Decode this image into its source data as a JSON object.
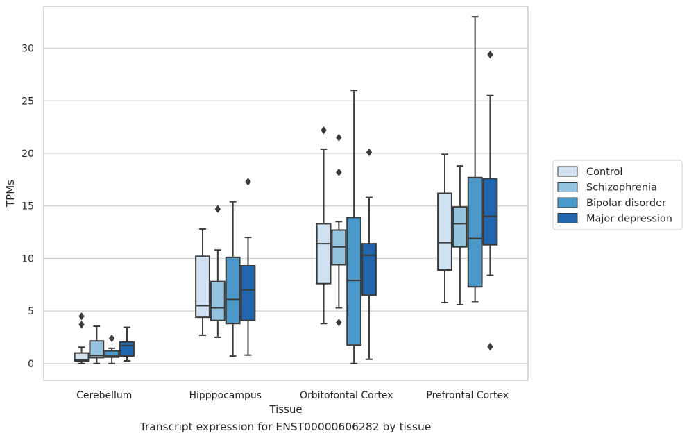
{
  "caption": "Transcript expression for ENST00000606282 by tissue",
  "chart_data": {
    "type": "box",
    "title": "",
    "xlabel": "Tissue",
    "ylabel": "TPMs",
    "ylim": [
      -1.6,
      34
    ],
    "yticks": [
      0,
      5,
      10,
      15,
      20,
      25,
      30
    ],
    "grid": "horizontal",
    "legend_position": "right",
    "categories": [
      "Cerebellum",
      "Hipppocampus",
      "Orbitofontal Cortex",
      "Prefrontal Cortex"
    ],
    "series": [
      {
        "name": "Control",
        "color": "#d0e1f2",
        "boxes": [
          {
            "whisker_low": 0.0,
            "q1": 0.25,
            "median": 0.35,
            "q3": 1.0,
            "whisker_high": 1.55,
            "outliers": [
              3.7,
              4.5
            ]
          },
          {
            "whisker_low": 2.7,
            "q1": 4.4,
            "median": 5.5,
            "q3": 10.2,
            "whisker_high": 12.8,
            "outliers": []
          },
          {
            "whisker_low": 3.8,
            "q1": 7.6,
            "median": 11.4,
            "q3": 13.3,
            "whisker_high": 20.4,
            "outliers": [
              22.2
            ]
          },
          {
            "whisker_low": 5.8,
            "q1": 8.9,
            "median": 11.5,
            "q3": 16.2,
            "whisker_high": 19.9,
            "outliers": []
          }
        ]
      },
      {
        "name": "Schizophrenia",
        "color": "#94c4df",
        "boxes": [
          {
            "whisker_low": 0.0,
            "q1": 0.55,
            "median": 0.75,
            "q3": 2.15,
            "whisker_high": 3.55,
            "outliers": []
          },
          {
            "whisker_low": 2.5,
            "q1": 4.1,
            "median": 5.3,
            "q3": 7.8,
            "whisker_high": 10.8,
            "outliers": [
              14.7
            ]
          },
          {
            "whisker_low": 5.3,
            "q1": 9.4,
            "median": 11.1,
            "q3": 12.7,
            "whisker_high": 13.5,
            "outliers": [
              3.9,
              18.2,
              21.5
            ]
          },
          {
            "whisker_low": 5.6,
            "q1": 11.1,
            "median": 13.3,
            "q3": 14.9,
            "whisker_high": 18.8,
            "outliers": []
          }
        ]
      },
      {
        "name": "Bipolar disorder",
        "color": "#4a98c9",
        "boxes": [
          {
            "whisker_low": 0.0,
            "q1": 0.6,
            "median": 0.7,
            "q3": 1.2,
            "whisker_high": 1.45,
            "outliers": [
              2.4
            ]
          },
          {
            "whisker_low": 0.7,
            "q1": 3.8,
            "median": 6.1,
            "q3": 10.1,
            "whisker_high": 15.4,
            "outliers": []
          },
          {
            "whisker_low": 0.0,
            "q1": 1.75,
            "median": 7.9,
            "q3": 13.9,
            "whisker_high": 26.0,
            "outliers": []
          },
          {
            "whisker_low": 5.9,
            "q1": 7.3,
            "median": 11.9,
            "q3": 17.7,
            "whisker_high": 33.0,
            "outliers": []
          }
        ]
      },
      {
        "name": "Major depression",
        "color": "#2166ac",
        "boxes": [
          {
            "whisker_low": 0.25,
            "q1": 0.7,
            "median": 1.7,
            "q3": 2.05,
            "whisker_high": 3.45,
            "outliers": []
          },
          {
            "whisker_low": 0.8,
            "q1": 4.1,
            "median": 7.0,
            "q3": 9.3,
            "whisker_high": 12.0,
            "outliers": [
              17.3
            ]
          },
          {
            "whisker_low": 0.4,
            "q1": 6.5,
            "median": 10.3,
            "q3": 11.4,
            "whisker_high": 15.8,
            "outliers": [
              20.1
            ]
          },
          {
            "whisker_low": 8.4,
            "q1": 11.3,
            "median": 14.0,
            "q3": 17.6,
            "whisker_high": 25.5,
            "outliers": [
              1.6,
              29.4
            ]
          }
        ]
      }
    ]
  }
}
